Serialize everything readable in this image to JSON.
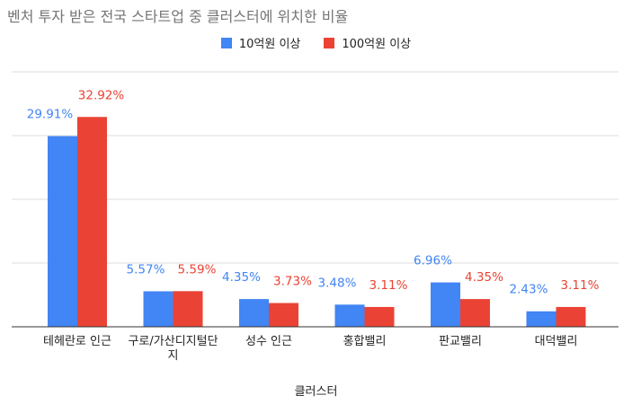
{
  "chart_data": {
    "type": "bar",
    "title": "벤처 투자 받은 전국 스타트업 중 클러스터에 위치한 비율",
    "xlabel": "클러스터",
    "ylabel": "",
    "ylim": [
      0,
      40
    ],
    "grid": true,
    "legend_position": "top",
    "categories": [
      "테헤란로 인근",
      "구로/가산디지털단지",
      "성수 인근",
      "홍합밸리",
      "판교밸리",
      "대덕밸리"
    ],
    "series": [
      {
        "name": "10억원 이상",
        "color": "#4285F4",
        "values": [
          29.91,
          5.57,
          4.35,
          3.48,
          6.96,
          2.43
        ],
        "labels": [
          "29.91%",
          "5.57%",
          "4.35%",
          "3.48%",
          "6.96%",
          "2.43%"
        ]
      },
      {
        "name": "100억원 이상",
        "color": "#EA4335",
        "values": [
          32.92,
          5.59,
          3.73,
          3.11,
          4.35,
          3.11
        ],
        "labels": [
          "32.92%",
          "5.59%",
          "3.73%",
          "3.11%",
          "4.35%",
          "3.11%"
        ]
      }
    ]
  }
}
